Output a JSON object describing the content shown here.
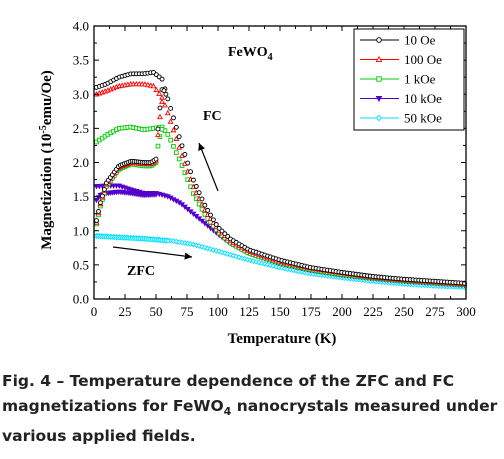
{
  "chart_data": {
    "type": "scatter",
    "title": "FeWO4",
    "xlabel": "Temperature (K)",
    "ylabel": "Magnetization (10-5emu/Oe)",
    "xlim": [
      0,
      300
    ],
    "ylim": [
      0,
      4.0
    ],
    "x_ticks": [
      "0",
      "25",
      "50",
      "75",
      "100",
      "125",
      "150",
      "175",
      "200",
      "225",
      "250",
      "275",
      "300"
    ],
    "y_ticks": [
      "0.0",
      "0.5",
      "1.0",
      "1.5",
      "2.0",
      "2.5",
      "3.0",
      "3.5",
      "4.0"
    ],
    "legend_position": "top-right",
    "annotations": [
      "FC",
      "ZFC"
    ],
    "series": [
      {
        "name": "10 Oe",
        "marker": "circle",
        "color": "#000000",
        "fc": [
          [
            2,
            3.1
          ],
          [
            10,
            3.15
          ],
          [
            20,
            3.25
          ],
          [
            30,
            3.3
          ],
          [
            40,
            3.3
          ],
          [
            48,
            3.32
          ],
          [
            55,
            3.22
          ],
          [
            60,
            2.9
          ],
          [
            70,
            2.3
          ],
          [
            80,
            1.75
          ],
          [
            90,
            1.35
          ],
          [
            100,
            1.05
          ],
          [
            110,
            0.88
          ],
          [
            125,
            0.72
          ],
          [
            150,
            0.57
          ],
          [
            175,
            0.46
          ],
          [
            200,
            0.39
          ],
          [
            225,
            0.33
          ],
          [
            250,
            0.29
          ],
          [
            275,
            0.26
          ],
          [
            300,
            0.23
          ]
        ],
        "zfc": [
          [
            2,
            1.15
          ],
          [
            5,
            1.4
          ],
          [
            10,
            1.7
          ],
          [
            20,
            1.95
          ],
          [
            30,
            2.02
          ],
          [
            40,
            2.0
          ],
          [
            46,
            2.0
          ],
          [
            50,
            2.05
          ],
          [
            52,
            2.6
          ],
          [
            55,
            3.1
          ],
          [
            58,
            3.0
          ]
        ]
      },
      {
        "name": "100 Oe",
        "marker": "triangle-up",
        "color": "#ff0000",
        "fc": [
          [
            2,
            3.0
          ],
          [
            10,
            3.05
          ],
          [
            20,
            3.12
          ],
          [
            30,
            3.15
          ],
          [
            40,
            3.15
          ],
          [
            48,
            3.12
          ],
          [
            55,
            2.95
          ],
          [
            60,
            2.7
          ],
          [
            70,
            2.15
          ],
          [
            80,
            1.65
          ],
          [
            90,
            1.28
          ],
          [
            100,
            1.02
          ],
          [
            110,
            0.85
          ],
          [
            125,
            0.7
          ],
          [
            150,
            0.55
          ],
          [
            175,
            0.45
          ],
          [
            200,
            0.38
          ],
          [
            225,
            0.32
          ],
          [
            250,
            0.28
          ],
          [
            275,
            0.25
          ],
          [
            300,
            0.22
          ]
        ],
        "zfc": [
          [
            2,
            1.12
          ],
          [
            5,
            1.38
          ],
          [
            10,
            1.68
          ],
          [
            20,
            1.93
          ],
          [
            30,
            2.0
          ],
          [
            40,
            1.98
          ],
          [
            46,
            1.98
          ],
          [
            50,
            2.03
          ],
          [
            52,
            2.5
          ],
          [
            55,
            2.92
          ]
        ]
      },
      {
        "name": "1 kOe",
        "marker": "square",
        "color": "#00cc00",
        "fc": [
          [
            2,
            2.3
          ],
          [
            10,
            2.4
          ],
          [
            20,
            2.5
          ],
          [
            30,
            2.52
          ],
          [
            40,
            2.48
          ],
          [
            48,
            2.5
          ],
          [
            55,
            2.52
          ],
          [
            60,
            2.4
          ],
          [
            70,
            2.0
          ],
          [
            80,
            1.55
          ],
          [
            90,
            1.22
          ],
          [
            100,
            0.98
          ],
          [
            110,
            0.82
          ],
          [
            125,
            0.67
          ],
          [
            150,
            0.53
          ],
          [
            175,
            0.43
          ],
          [
            200,
            0.36
          ],
          [
            225,
            0.31
          ],
          [
            250,
            0.27
          ],
          [
            275,
            0.24
          ],
          [
            300,
            0.21
          ]
        ],
        "zfc": [
          [
            2,
            1.1
          ],
          [
            5,
            1.35
          ],
          [
            10,
            1.65
          ],
          [
            20,
            1.9
          ],
          [
            30,
            1.98
          ],
          [
            40,
            1.95
          ],
          [
            46,
            1.95
          ],
          [
            50,
            2.0
          ],
          [
            52,
            2.3
          ],
          [
            55,
            2.5
          ]
        ]
      },
      {
        "name": "10 kOe",
        "marker": "triangle-down",
        "color": "#5500cc",
        "fc": [
          [
            2,
            1.65
          ],
          [
            10,
            1.66
          ],
          [
            20,
            1.66
          ],
          [
            30,
            1.6
          ],
          [
            40,
            1.55
          ],
          [
            50,
            1.55
          ],
          [
            60,
            1.5
          ],
          [
            70,
            1.4
          ],
          [
            80,
            1.25
          ],
          [
            90,
            1.1
          ],
          [
            100,
            0.95
          ],
          [
            110,
            0.82
          ],
          [
            125,
            0.67
          ],
          [
            150,
            0.52
          ],
          [
            175,
            0.42
          ],
          [
            200,
            0.35
          ],
          [
            225,
            0.3
          ],
          [
            250,
            0.26
          ],
          [
            275,
            0.23
          ],
          [
            300,
            0.2
          ]
        ],
        "zfc": [
          [
            2,
            1.45
          ],
          [
            5,
            1.52
          ],
          [
            10,
            1.55
          ],
          [
            20,
            1.57
          ],
          [
            30,
            1.55
          ],
          [
            40,
            1.52
          ],
          [
            50,
            1.53
          ]
        ]
      },
      {
        "name": "50 kOe",
        "marker": "diamond",
        "color": "#00e0ff",
        "fc": [
          [
            2,
            0.93
          ],
          [
            20,
            0.91
          ],
          [
            40,
            0.89
          ],
          [
            60,
            0.86
          ],
          [
            80,
            0.8
          ],
          [
            100,
            0.7
          ],
          [
            125,
            0.57
          ],
          [
            150,
            0.46
          ],
          [
            175,
            0.37
          ],
          [
            200,
            0.31
          ],
          [
            225,
            0.26
          ],
          [
            250,
            0.22
          ],
          [
            275,
            0.19
          ],
          [
            300,
            0.17
          ]
        ],
        "zfc": [
          [
            2,
            0.92
          ],
          [
            20,
            0.9
          ],
          [
            40,
            0.88
          ],
          [
            60,
            0.85
          ]
        ]
      }
    ]
  },
  "caption": {
    "line1": "Fig. 4 – Temperature dependence of the ZFC and FC",
    "line2_pre": "magnetizations for FeWO",
    "line2_sub": "4",
    "line2_post": " nanocrystals measured under",
    "line3": "various applied fields."
  },
  "labels": {
    "title_main": "FeWO",
    "title_sub": "4",
    "ylabel_pre": "Magnetization (10",
    "ylabel_sup": "-5",
    "ylabel_post": "emu/Oe)",
    "fc_label": "FC",
    "zfc_label": "ZFC"
  }
}
